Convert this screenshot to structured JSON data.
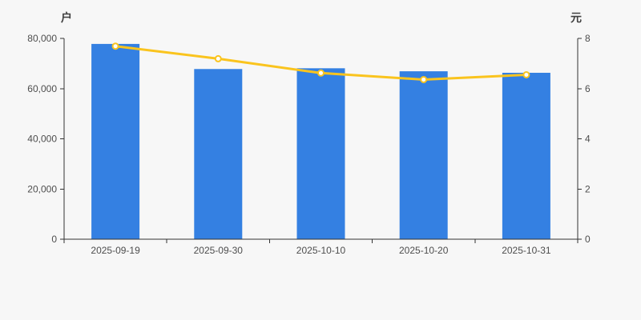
{
  "chart_data": {
    "type": "bar",
    "title": "",
    "categories": [
      "2025-09-19",
      "2025-09-30",
      "2025-10-10",
      "2025-10-20",
      "2025-10-31"
    ],
    "series": [
      {
        "name": "bar-series",
        "type": "bar",
        "axis": "left",
        "values": [
          77800,
          67800,
          68100,
          66900,
          66300
        ],
        "color": "#3480e2"
      },
      {
        "name": "line-series",
        "type": "line",
        "axis": "right",
        "values": [
          7.69,
          7.19,
          6.62,
          6.36,
          6.55
        ],
        "color": "#fac41e",
        "marker_fill": "#ffffff"
      }
    ],
    "left_axis": {
      "unit_label": "户",
      "min": 0,
      "max": 80000,
      "tick_labels": [
        "0",
        "20,000",
        "40,000",
        "60,000",
        "80,000"
      ]
    },
    "right_axis": {
      "unit_label": "元",
      "min": 0,
      "max": 8,
      "tick_labels": [
        "0",
        "2",
        "4",
        "6",
        "8"
      ]
    },
    "legend": "none",
    "grid": false,
    "background": "#f7f7f7"
  }
}
